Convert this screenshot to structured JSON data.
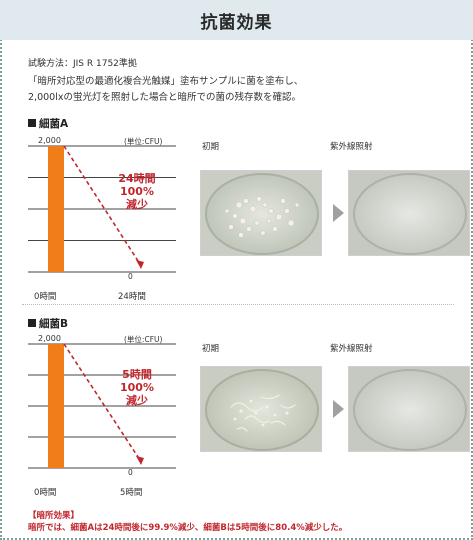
{
  "header": {
    "title": "抗菌効果"
  },
  "test_method": "試験方法：JIS R 1752準拠",
  "description": [
    "「暗所対応型の最適化複合光触媒」塗布サンプルに菌を塗布し、",
    "2,000lxの蛍光灯を照射した場合と暗所での菌の残存数を確認。"
  ],
  "sections": [
    {
      "label": "細菌A",
      "unit": "(単位:CFU)",
      "annotation": [
        "24時間",
        "100%",
        "減少"
      ],
      "photo_labels": [
        "初期",
        "紫外線照射"
      ]
    },
    {
      "label": "細菌B",
      "unit": "(単位:CFU)",
      "annotation": [
        "5時間",
        "100%",
        "減少"
      ],
      "photo_labels": [
        "初期",
        "紫外線照射"
      ]
    }
  ],
  "result": {
    "heading": "【暗所効果】",
    "text": "暗所では、細菌Aは24時間後に99.9%減少、細菌Bは5時間後に80.4%減少した。"
  },
  "colors": {
    "bar": "#f07d1a",
    "accent_red": "#c0272d",
    "title_bg": "#dfe9ee"
  },
  "chart_data": [
    {
      "type": "bar",
      "title": "細菌A",
      "categories": [
        "0時間",
        "24時間"
      ],
      "values": [
        2000,
        0
      ],
      "value_labels": [
        "2,000",
        "0"
      ],
      "ylabel": "(単位:CFU)",
      "ylim": [
        0,
        2000
      ]
    },
    {
      "type": "bar",
      "title": "細菌B",
      "categories": [
        "0時間",
        "5時間"
      ],
      "values": [
        2000,
        0
      ],
      "value_labels": [
        "2,000",
        "0"
      ],
      "ylabel": "(単位:CFU)",
      "ylim": [
        0,
        2000
      ]
    }
  ]
}
